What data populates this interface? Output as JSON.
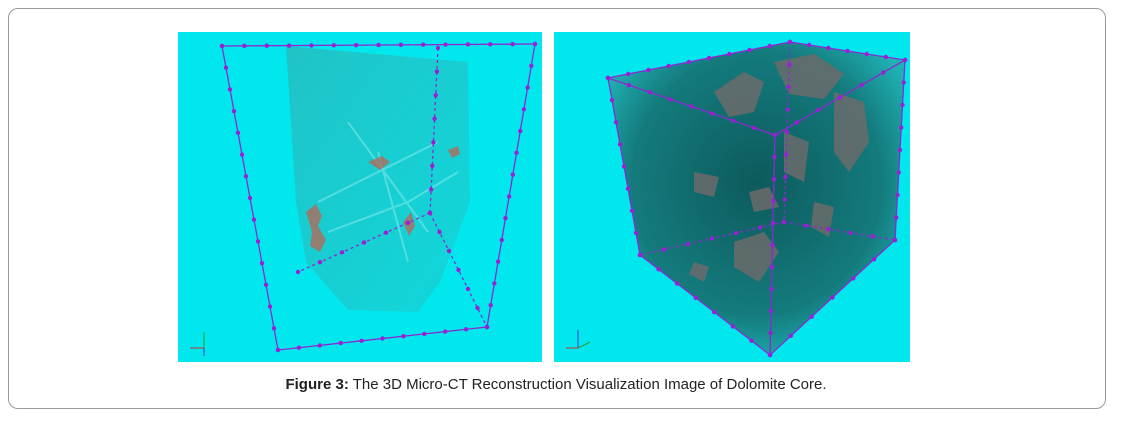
{
  "figure": {
    "label": "Figure 3:",
    "caption": "The 3D Micro-CT Reconstruction Visualization Image of Dolomite Core."
  }
}
